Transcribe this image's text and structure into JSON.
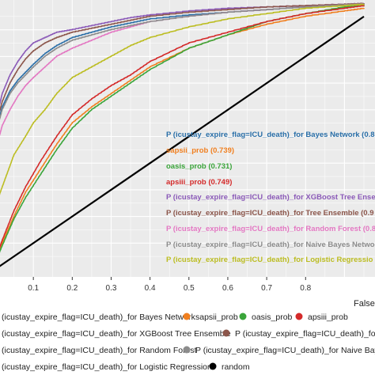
{
  "chart_data": {
    "type": "line",
    "xlabel": "False",
    "xlim": [
      0,
      0.95
    ],
    "ylim": [
      0,
      1
    ],
    "x_ticks": [
      "0.1",
      "0.2",
      "0.3",
      "0.4",
      "0.5",
      "0.6",
      "0.7",
      "0.8"
    ],
    "grid": true,
    "series": [
      {
        "name": "P (icustay_expire_flag=ICU_death)_for Bayes Network",
        "label": "P (icustay_expire_flag=ICU_death)_for Bayes Network (0.8",
        "color": "#2a6fa8",
        "x": [
          0,
          0.005,
          0.02,
          0.04,
          0.06,
          0.08,
          0.1,
          0.13,
          0.16,
          0.2,
          0.25,
          0.3,
          0.35,
          0.4,
          0.5,
          0.6,
          0.7,
          0.8,
          0.9,
          0.95
        ],
        "y": [
          0.47,
          0.53,
          0.61,
          0.67,
          0.71,
          0.74,
          0.77,
          0.81,
          0.84,
          0.87,
          0.89,
          0.91,
          0.925,
          0.94,
          0.955,
          0.965,
          0.975,
          0.985,
          0.993,
          0.995
        ]
      },
      {
        "name": "sapsii_prob",
        "label": "sapsii_prob (0.739)",
        "color": "#f07f1f",
        "x": [
          0,
          0.02,
          0.05,
          0.08,
          0.12,
          0.16,
          0.2,
          0.25,
          0.3,
          0.35,
          0.4,
          0.5,
          0.6,
          0.7,
          0.8,
          0.9,
          0.95
        ],
        "y": [
          0.02,
          0.1,
          0.2,
          0.29,
          0.38,
          0.47,
          0.55,
          0.61,
          0.66,
          0.71,
          0.76,
          0.83,
          0.88,
          0.92,
          0.95,
          0.97,
          0.98
        ]
      },
      {
        "name": "oasis_prob",
        "label": "oasis_prob (0.731)",
        "color": "#3aa53a",
        "x": [
          0,
          0.02,
          0.05,
          0.08,
          0.12,
          0.16,
          0.2,
          0.25,
          0.3,
          0.35,
          0.4,
          0.5,
          0.6,
          0.7,
          0.8,
          0.9,
          0.95
        ],
        "y": [
          0.02,
          0.09,
          0.19,
          0.27,
          0.36,
          0.45,
          0.53,
          0.6,
          0.65,
          0.7,
          0.75,
          0.83,
          0.88,
          0.93,
          0.96,
          0.985,
          0.99
        ]
      },
      {
        "name": "apsiii_prob",
        "label": "apsiii_prob (0.749)",
        "color": "#d42a2a",
        "x": [
          0,
          0.02,
          0.05,
          0.08,
          0.12,
          0.16,
          0.2,
          0.25,
          0.3,
          0.35,
          0.4,
          0.5,
          0.6,
          0.7,
          0.8,
          0.9,
          0.95
        ],
        "y": [
          0.03,
          0.11,
          0.22,
          0.31,
          0.41,
          0.5,
          0.58,
          0.64,
          0.69,
          0.73,
          0.78,
          0.85,
          0.89,
          0.93,
          0.96,
          0.98,
          0.99
        ]
      },
      {
        "name": "P (icustay_expire_flag=ICU_death)_for XGBoost Tree Ensemble",
        "label": "P (icustay_expire_flag=ICU_death)_for XGBoost Tree Ense",
        "color": "#8b5ab8",
        "x": [
          0,
          0.005,
          0.02,
          0.04,
          0.06,
          0.08,
          0.1,
          0.13,
          0.16,
          0.2,
          0.25,
          0.3,
          0.35,
          0.4,
          0.5,
          0.6,
          0.7,
          0.8,
          0.9,
          0.95
        ],
        "y": [
          0.5,
          0.57,
          0.66,
          0.73,
          0.78,
          0.82,
          0.85,
          0.87,
          0.89,
          0.9,
          0.915,
          0.93,
          0.945,
          0.955,
          0.97,
          0.98,
          0.985,
          0.99,
          0.995,
          0.998
        ]
      },
      {
        "name": "P (icustay_expire_flag=ICU_death)_for Tree Ensemble",
        "label": "P (icustay_expire_flag=ICU_death)_for Tree Ensemble (0.9",
        "color": "#8c564b",
        "x": [
          0,
          0.005,
          0.02,
          0.04,
          0.06,
          0.08,
          0.1,
          0.13,
          0.16,
          0.2,
          0.25,
          0.3,
          0.35,
          0.4,
          0.5,
          0.6,
          0.7,
          0.8,
          0.9,
          0.95
        ],
        "y": [
          0.48,
          0.55,
          0.63,
          0.7,
          0.75,
          0.79,
          0.82,
          0.85,
          0.87,
          0.89,
          0.905,
          0.92,
          0.935,
          0.95,
          0.965,
          0.975,
          0.985,
          0.99,
          0.995,
          0.998
        ]
      },
      {
        "name": "P (icustay_expire_flag=ICU_death)_for Random Forest",
        "label": "P (icustay_expire_flag=ICU_death)_for Random Forest (0.8",
        "color": "#e377c2",
        "x": [
          0,
          0.005,
          0.02,
          0.04,
          0.06,
          0.08,
          0.1,
          0.13,
          0.16,
          0.2,
          0.25,
          0.3,
          0.35,
          0.4,
          0.5,
          0.6,
          0.7,
          0.8,
          0.9,
          0.95
        ],
        "y": [
          0.4,
          0.46,
          0.54,
          0.6,
          0.65,
          0.69,
          0.72,
          0.76,
          0.8,
          0.83,
          0.86,
          0.89,
          0.91,
          0.93,
          0.95,
          0.965,
          0.975,
          0.985,
          0.993,
          0.996
        ]
      },
      {
        "name": "P (icustay_expire_flag=ICU_death)_for Naive Bayes Network",
        "label": "P (icustay_expire_flag=ICU_death)_for Naive Bayes Network",
        "color": "#8c8c8c",
        "x": [
          0,
          0.005,
          0.02,
          0.04,
          0.06,
          0.08,
          0.1,
          0.13,
          0.16,
          0.2,
          0.25,
          0.3,
          0.35,
          0.4,
          0.5,
          0.6,
          0.7,
          0.8,
          0.9,
          0.95
        ],
        "y": [
          0.46,
          0.52,
          0.6,
          0.66,
          0.7,
          0.73,
          0.76,
          0.8,
          0.83,
          0.86,
          0.88,
          0.9,
          0.915,
          0.93,
          0.95,
          0.965,
          0.975,
          0.985,
          0.993,
          0.996
        ]
      },
      {
        "name": "P (icustay_expire_flag=ICU_death)_for Logistic Regression",
        "label": "P (icustay_expire_flag=ICU_death)_for Logistic Regressio",
        "color": "#bcbd22",
        "x": [
          0,
          0.01,
          0.03,
          0.05,
          0.08,
          0.1,
          0.13,
          0.16,
          0.2,
          0.25,
          0.3,
          0.35,
          0.4,
          0.5,
          0.6,
          0.7,
          0.8,
          0.9,
          0.95
        ],
        "y": [
          0.2,
          0.27,
          0.35,
          0.43,
          0.5,
          0.55,
          0.6,
          0.66,
          0.72,
          0.76,
          0.8,
          0.84,
          0.87,
          0.91,
          0.94,
          0.96,
          0.98,
          0.99,
          0.995
        ]
      },
      {
        "name": "random",
        "color": "#000000",
        "x": [
          0,
          0.95
        ],
        "y": [
          0,
          0.95
        ]
      }
    ]
  },
  "legend": {
    "items": [
      {
        "text": "(icustay_expire_flag=ICU_death)_for Bayes Network",
        "color": "#2a6fa8"
      },
      {
        "text": "sapsii_prob",
        "color": "#f07f1f"
      },
      {
        "text": "oasis_prob",
        "color": "#3aa53a"
      },
      {
        "text": "apsiii_prob",
        "color": "#d42a2a"
      },
      {
        "text": "(icustay_expire_flag=ICU_death)_for XGBoost Tree Ensemble",
        "color": "#8b5ab8"
      },
      {
        "text": "P (icustay_expire_flag=ICU_death)_for Tree",
        "color": "#8c564b"
      },
      {
        "text": "(icustay_expire_flag=ICU_death)_for Random Forest",
        "color": "#e377c2"
      },
      {
        "text": "P (icustay_expire_flag=ICU_death)_for Naive Bayes N",
        "color": "#8c8c8c"
      },
      {
        "text": "(icustay_expire_flag=ICU_death)_for Logistic Regression",
        "color": "#bcbd22"
      },
      {
        "text": "random",
        "color": "#000000"
      }
    ]
  }
}
